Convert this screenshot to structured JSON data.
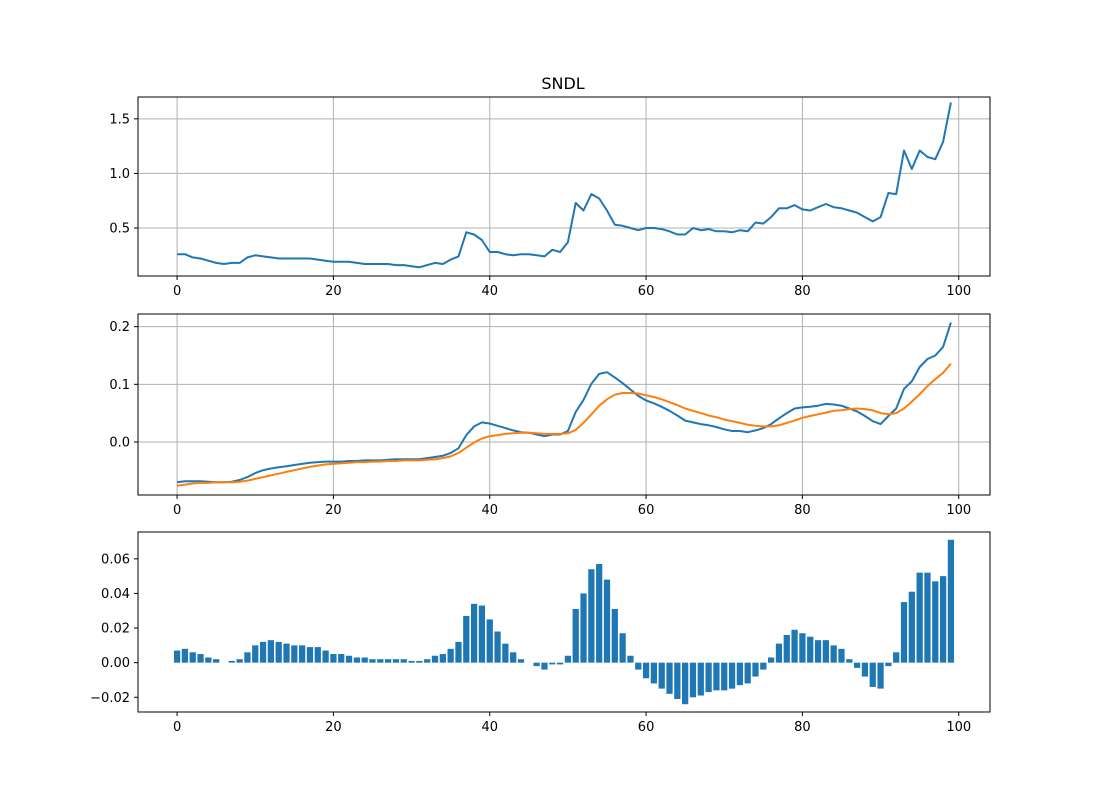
{
  "chart_data": [
    {
      "type": "line",
      "title": "SNDL",
      "xlabel": "",
      "ylabel": "",
      "xlim": [
        -5,
        104
      ],
      "ylim": [
        0.06,
        1.7
      ],
      "xticks": [
        0,
        20,
        40,
        60,
        80,
        100
      ],
      "yticks": [
        0.5,
        1.0,
        1.5
      ],
      "ytick_labels": [
        "0.5",
        "1.0",
        "1.5"
      ],
      "grid": true,
      "series": [
        {
          "color": "#1f77b4",
          "x": [
            0,
            1,
            2,
            3,
            4,
            5,
            6,
            7,
            8,
            9,
            10,
            11,
            12,
            13,
            14,
            15,
            16,
            17,
            18,
            19,
            20,
            21,
            22,
            23,
            24,
            25,
            26,
            27,
            28,
            29,
            30,
            31,
            32,
            33,
            34,
            35,
            36,
            37,
            38,
            39,
            40,
            41,
            42,
            43,
            44,
            45,
            46,
            47,
            48,
            49,
            50,
            51,
            52,
            53,
            54,
            55,
            56,
            57,
            58,
            59,
            60,
            61,
            62,
            63,
            64,
            65,
            66,
            67,
            68,
            69,
            70,
            71,
            72,
            73,
            74,
            75,
            76,
            77,
            78,
            79,
            80,
            81,
            82,
            83,
            84,
            85,
            86,
            87,
            88,
            89,
            90,
            91,
            92,
            93,
            94,
            95,
            96,
            97,
            98,
            99
          ],
          "y": [
            0.26,
            0.26,
            0.23,
            0.22,
            0.2,
            0.18,
            0.17,
            0.18,
            0.18,
            0.23,
            0.25,
            0.24,
            0.23,
            0.22,
            0.22,
            0.22,
            0.22,
            0.22,
            0.21,
            0.2,
            0.19,
            0.19,
            0.19,
            0.18,
            0.17,
            0.17,
            0.17,
            0.17,
            0.16,
            0.16,
            0.15,
            0.14,
            0.16,
            0.18,
            0.17,
            0.21,
            0.24,
            0.46,
            0.44,
            0.39,
            0.28,
            0.28,
            0.26,
            0.25,
            0.26,
            0.26,
            0.25,
            0.24,
            0.3,
            0.28,
            0.37,
            0.73,
            0.66,
            0.81,
            0.77,
            0.66,
            0.53,
            0.52,
            0.5,
            0.48,
            0.5,
            0.5,
            0.49,
            0.47,
            0.44,
            0.44,
            0.5,
            0.48,
            0.49,
            0.47,
            0.47,
            0.46,
            0.48,
            0.47,
            0.55,
            0.54,
            0.6,
            0.68,
            0.68,
            0.71,
            0.67,
            0.66,
            0.69,
            0.72,
            0.69,
            0.68,
            0.66,
            0.64,
            0.6,
            0.56,
            0.6,
            0.82,
            0.81,
            1.21,
            1.04,
            1.21,
            1.15,
            1.13,
            1.29,
            1.65
          ]
        }
      ]
    },
    {
      "type": "line",
      "title": "",
      "xlabel": "",
      "ylabel": "",
      "xlim": [
        -5,
        104
      ],
      "ylim": [
        -0.092,
        0.222
      ],
      "xticks": [
        0,
        20,
        40,
        60,
        80,
        100
      ],
      "yticks": [
        0.0,
        0.1,
        0.2
      ],
      "ytick_labels": [
        "0.0",
        "0.1",
        "0.2"
      ],
      "grid": true,
      "series": [
        {
          "color": "#1f77b4",
          "x": [
            0,
            1,
            2,
            3,
            4,
            5,
            6,
            7,
            8,
            9,
            10,
            11,
            12,
            13,
            14,
            15,
            16,
            17,
            18,
            19,
            20,
            21,
            22,
            23,
            24,
            25,
            26,
            27,
            28,
            29,
            30,
            31,
            32,
            33,
            34,
            35,
            36,
            37,
            38,
            39,
            40,
            41,
            42,
            43,
            44,
            45,
            46,
            47,
            48,
            49,
            50,
            51,
            52,
            53,
            54,
            55,
            56,
            57,
            58,
            59,
            60,
            61,
            62,
            63,
            64,
            65,
            66,
            67,
            68,
            69,
            70,
            71,
            72,
            73,
            74,
            75,
            76,
            77,
            78,
            79,
            80,
            81,
            82,
            83,
            84,
            85,
            86,
            87,
            88,
            89,
            90,
            91,
            92,
            93,
            94,
            95,
            96,
            97,
            98,
            99
          ],
          "y": [
            -0.07,
            -0.068,
            -0.068,
            -0.068,
            -0.069,
            -0.07,
            -0.07,
            -0.069,
            -0.066,
            -0.061,
            -0.054,
            -0.049,
            -0.046,
            -0.044,
            -0.042,
            -0.04,
            -0.038,
            -0.036,
            -0.035,
            -0.034,
            -0.034,
            -0.034,
            -0.033,
            -0.033,
            -0.032,
            -0.032,
            -0.032,
            -0.031,
            -0.03,
            -0.03,
            -0.03,
            -0.03,
            -0.028,
            -0.026,
            -0.024,
            -0.019,
            -0.011,
            0.012,
            0.027,
            0.034,
            0.032,
            0.028,
            0.024,
            0.02,
            0.017,
            0.016,
            0.013,
            0.01,
            0.013,
            0.013,
            0.019,
            0.052,
            0.073,
            0.101,
            0.118,
            0.121,
            0.112,
            0.102,
            0.091,
            0.08,
            0.072,
            0.067,
            0.061,
            0.054,
            0.046,
            0.037,
            0.034,
            0.031,
            0.029,
            0.026,
            0.022,
            0.019,
            0.019,
            0.017,
            0.02,
            0.024,
            0.031,
            0.041,
            0.05,
            0.058,
            0.06,
            0.061,
            0.063,
            0.066,
            0.065,
            0.063,
            0.058,
            0.053,
            0.045,
            0.036,
            0.031,
            0.045,
            0.058,
            0.092,
            0.105,
            0.13,
            0.144,
            0.15,
            0.165,
            0.207
          ]
        },
        {
          "color": "#ff7f0e",
          "x": [
            0,
            1,
            2,
            3,
            4,
            5,
            6,
            7,
            8,
            9,
            10,
            11,
            12,
            13,
            14,
            15,
            16,
            17,
            18,
            19,
            20,
            21,
            22,
            23,
            24,
            25,
            26,
            27,
            28,
            29,
            30,
            31,
            32,
            33,
            34,
            35,
            36,
            37,
            38,
            39,
            40,
            41,
            42,
            43,
            44,
            45,
            46,
            47,
            48,
            49,
            50,
            51,
            52,
            53,
            54,
            55,
            56,
            57,
            58,
            59,
            60,
            61,
            62,
            63,
            64,
            65,
            66,
            67,
            68,
            69,
            70,
            71,
            72,
            73,
            74,
            75,
            76,
            77,
            78,
            79,
            80,
            81,
            82,
            83,
            84,
            85,
            86,
            87,
            88,
            89,
            90,
            91,
            92,
            93,
            94,
            95,
            96,
            97,
            98,
            99
          ],
          "y": [
            -0.076,
            -0.074,
            -0.072,
            -0.071,
            -0.071,
            -0.07,
            -0.07,
            -0.07,
            -0.069,
            -0.067,
            -0.064,
            -0.061,
            -0.058,
            -0.055,
            -0.052,
            -0.049,
            -0.046,
            -0.043,
            -0.041,
            -0.039,
            -0.038,
            -0.037,
            -0.036,
            -0.035,
            -0.035,
            -0.034,
            -0.034,
            -0.033,
            -0.033,
            -0.032,
            -0.032,
            -0.032,
            -0.031,
            -0.03,
            -0.028,
            -0.025,
            -0.019,
            -0.01,
            -0.001,
            0.006,
            0.01,
            0.012,
            0.014,
            0.015,
            0.016,
            0.016,
            0.015,
            0.014,
            0.014,
            0.014,
            0.015,
            0.021,
            0.033,
            0.048,
            0.063,
            0.074,
            0.082,
            0.085,
            0.085,
            0.084,
            0.081,
            0.078,
            0.074,
            0.069,
            0.064,
            0.058,
            0.054,
            0.05,
            0.046,
            0.043,
            0.039,
            0.036,
            0.033,
            0.03,
            0.028,
            0.027,
            0.027,
            0.029,
            0.033,
            0.037,
            0.042,
            0.045,
            0.048,
            0.051,
            0.054,
            0.055,
            0.057,
            0.058,
            0.057,
            0.055,
            0.05,
            0.048,
            0.05,
            0.058,
            0.07,
            0.083,
            0.097,
            0.109,
            0.12,
            0.136
          ]
        }
      ]
    },
    {
      "type": "bar",
      "title": "",
      "xlabel": "",
      "ylabel": "",
      "xlim": [
        -5,
        104
      ],
      "ylim": [
        -0.0285,
        0.0755
      ],
      "xticks": [
        0,
        20,
        40,
        60,
        80,
        100
      ],
      "yticks": [
        -0.02,
        0.0,
        0.02,
        0.04,
        0.06
      ],
      "ytick_labels": [
        "−0.02",
        "0.00",
        "0.02",
        "0.04",
        "0.06"
      ],
      "grid": false,
      "color": "#1f77b4",
      "x": [
        0,
        1,
        2,
        3,
        4,
        5,
        6,
        7,
        8,
        9,
        10,
        11,
        12,
        13,
        14,
        15,
        16,
        17,
        18,
        19,
        20,
        21,
        22,
        23,
        24,
        25,
        26,
        27,
        28,
        29,
        30,
        31,
        32,
        33,
        34,
        35,
        36,
        37,
        38,
        39,
        40,
        41,
        42,
        43,
        44,
        45,
        46,
        47,
        48,
        49,
        50,
        51,
        52,
        53,
        54,
        55,
        56,
        57,
        58,
        59,
        60,
        61,
        62,
        63,
        64,
        65,
        66,
        67,
        68,
        69,
        70,
        71,
        72,
        73,
        74,
        75,
        76,
        77,
        78,
        79,
        80,
        81,
        82,
        83,
        84,
        85,
        86,
        87,
        88,
        89,
        90,
        91,
        92,
        93,
        94,
        95,
        96,
        97,
        98,
        99
      ],
      "values": [
        0.007,
        0.008,
        0.006,
        0.005,
        0.003,
        0.002,
        0.0,
        0.001,
        0.002,
        0.006,
        0.01,
        0.012,
        0.013,
        0.012,
        0.011,
        0.01,
        0.01,
        0.009,
        0.009,
        0.007,
        0.005,
        0.005,
        0.004,
        0.003,
        0.003,
        0.002,
        0.002,
        0.002,
        0.002,
        0.002,
        0.001,
        0.001,
        0.002,
        0.004,
        0.005,
        0.008,
        0.012,
        0.027,
        0.034,
        0.033,
        0.025,
        0.018,
        0.011,
        0.006,
        0.002,
        0.0,
        -0.002,
        -0.004,
        -0.001,
        -0.001,
        0.004,
        0.031,
        0.04,
        0.054,
        0.057,
        0.048,
        0.031,
        0.017,
        0.004,
        -0.004,
        -0.009,
        -0.012,
        -0.015,
        -0.018,
        -0.021,
        -0.024,
        -0.02,
        -0.019,
        -0.017,
        -0.016,
        -0.016,
        -0.015,
        -0.013,
        -0.012,
        -0.008,
        -0.004,
        0.003,
        0.011,
        0.016,
        0.019,
        0.017,
        0.015,
        0.013,
        0.013,
        0.01,
        0.008,
        0.002,
        -0.003,
        -0.008,
        -0.014,
        -0.015,
        -0.002,
        0.006,
        0.035,
        0.041,
        0.052,
        0.052,
        0.047,
        0.05,
        0.071
      ]
    }
  ]
}
